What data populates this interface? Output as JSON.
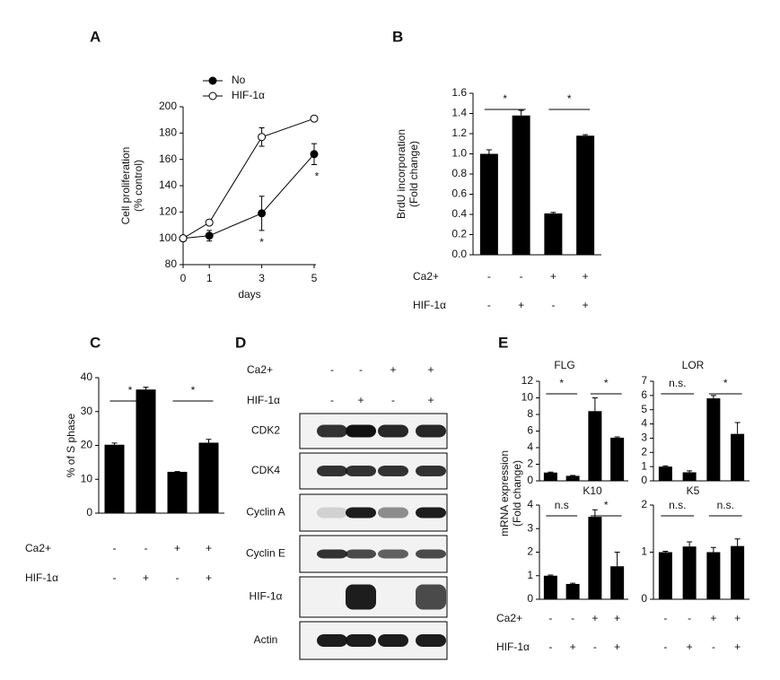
{
  "chart_data": [
    {
      "type": "line",
      "panel": "A",
      "x": [
        0,
        1,
        3,
        5
      ],
      "xlim": [
        0,
        5
      ],
      "xticks": [
        0,
        1,
        3,
        5
      ],
      "xlabel": "days",
      "ylabel": [
        "Cell proliferation",
        "(% control)"
      ],
      "ylim": [
        80,
        200
      ],
      "yticks": [
        80,
        100,
        120,
        140,
        160,
        180,
        200
      ],
      "series": [
        {
          "name": "No",
          "color": "#000000",
          "marker_fill": "#000000",
          "values": [
            100,
            102,
            119,
            164
          ],
          "errors": [
            0,
            4,
            13,
            8
          ]
        },
        {
          "name": "HIF-1α",
          "color": "#000000",
          "marker_fill": "#ffffff",
          "values": [
            100,
            112,
            177,
            191
          ],
          "errors": [
            0,
            2,
            7,
            2
          ]
        }
      ],
      "annotations": [
        {
          "x": 3,
          "label": "*"
        },
        {
          "x": 5,
          "label": "*"
        }
      ]
    },
    {
      "type": "bar",
      "panel": "B",
      "ylabel": [
        "BrdU incorporation",
        "(Fold change)"
      ],
      "color": "#000000",
      "categories": [
        null,
        null,
        null,
        null
      ],
      "values": [
        1.0,
        1.38,
        0.41,
        1.18
      ],
      "errors": [
        0.04,
        0.05,
        0.01,
        0.01
      ],
      "ylim": [
        0,
        1.6
      ],
      "yticks": [
        {
          "value": 0,
          "label": "0.0"
        },
        0.2,
        0.4,
        0.6,
        0.8,
        {
          "value": 1,
          "label": "1.0"
        },
        1.2,
        1.4,
        1.6
      ],
      "significance": [
        "*",
        "*"
      ],
      "conditions": [
        {
          "name": "Ca2+",
          "values": [
            "-",
            "-",
            "+",
            "+"
          ]
        },
        {
          "name": "HIF-1α",
          "values": [
            "-",
            "+",
            "-",
            "+"
          ]
        }
      ]
    },
    {
      "type": "bar",
      "panel": "C",
      "ylabel": [
        "% of S phase"
      ],
      "color": "#000000",
      "categories": [
        null,
        null,
        null,
        null
      ],
      "values": [
        20.2,
        36.5,
        12.2,
        20.8
      ],
      "errors": [
        0.5,
        0.7,
        0.1,
        1.0
      ],
      "ylim": [
        0,
        40
      ],
      "yticks": [
        0,
        10,
        20,
        30,
        40
      ],
      "significance": [
        "*",
        "*"
      ],
      "conditions": [
        {
          "name": "Ca2+",
          "values": [
            "-",
            "-",
            "+",
            "+"
          ]
        },
        {
          "name": "HIF-1α",
          "values": [
            "-",
            "+",
            "-",
            "+"
          ]
        }
      ]
    },
    {
      "type": "bar",
      "panel": "E",
      "title": "FLG",
      "ylabel": [
        "mRNA expression",
        "(Fold change)"
      ],
      "color": "#000000",
      "categories": [
        null,
        null,
        null,
        null
      ],
      "values": [
        1.0,
        0.6,
        8.4,
        5.2
      ],
      "errors": [
        0.05,
        0.05,
        1.6,
        0.1
      ],
      "ylim": [
        0,
        12
      ],
      "yticks": [
        0,
        2,
        4,
        6,
        8,
        10,
        12
      ],
      "significance": [
        "*",
        "*"
      ]
    },
    {
      "type": "bar",
      "title": "LOR",
      "color": "#000000",
      "categories": [
        null,
        null,
        null,
        null
      ],
      "values": [
        1.0,
        0.6,
        5.8,
        3.3
      ],
      "errors": [
        0.05,
        0.1,
        0.2,
        0.8
      ],
      "ylim": [
        0,
        7
      ],
      "yticks": [
        0,
        1,
        2,
        3,
        4,
        5,
        6,
        7
      ],
      "significance": [
        "n.s.",
        "*"
      ]
    },
    {
      "type": "bar",
      "title": "K10",
      "color": "#000000",
      "categories": [
        null,
        null,
        null,
        null
      ],
      "values": [
        1.0,
        0.65,
        3.5,
        1.4
      ],
      "errors": [
        0.03,
        0.03,
        0.3,
        0.6
      ],
      "ylim": [
        0,
        4
      ],
      "yticks": [
        0,
        1,
        2,
        3,
        4
      ],
      "significance": [
        "n.s",
        "*"
      ],
      "conditions": [
        {
          "name": "Ca2+",
          "values": [
            "-",
            "-",
            "+",
            "+"
          ]
        },
        {
          "name": "HIF-1α",
          "values": [
            "-",
            "+",
            "-",
            "+"
          ]
        }
      ]
    },
    {
      "type": "bar",
      "title": "K5",
      "color": "#000000",
      "categories": [
        null,
        null,
        null,
        null
      ],
      "values": [
        1.0,
        1.12,
        1.0,
        1.13
      ],
      "errors": [
        0.02,
        0.1,
        0.1,
        0.15
      ],
      "ylim": [
        0,
        2
      ],
      "yticks": [
        0,
        1,
        2
      ],
      "significance": [
        "n.s.",
        "n.s."
      ],
      "conditions": [
        {
          "values": [
            "-",
            "-",
            "+",
            "+"
          ]
        },
        {
          "values": [
            "-",
            "+",
            "-",
            "+"
          ]
        }
      ]
    }
  ],
  "blot": {
    "panel": "D",
    "conditions": [
      {
        "name": "Ca2+",
        "values": [
          "-",
          "-",
          "+",
          "+"
        ]
      },
      {
        "name": "HIF-1α",
        "values": [
          "-",
          "+",
          "-",
          "+"
        ]
      }
    ],
    "rows": [
      "CDK2",
      "CDK4",
      "Cyclin A",
      "Cyclin E",
      "HIF-1α",
      "Actin"
    ]
  }
}
